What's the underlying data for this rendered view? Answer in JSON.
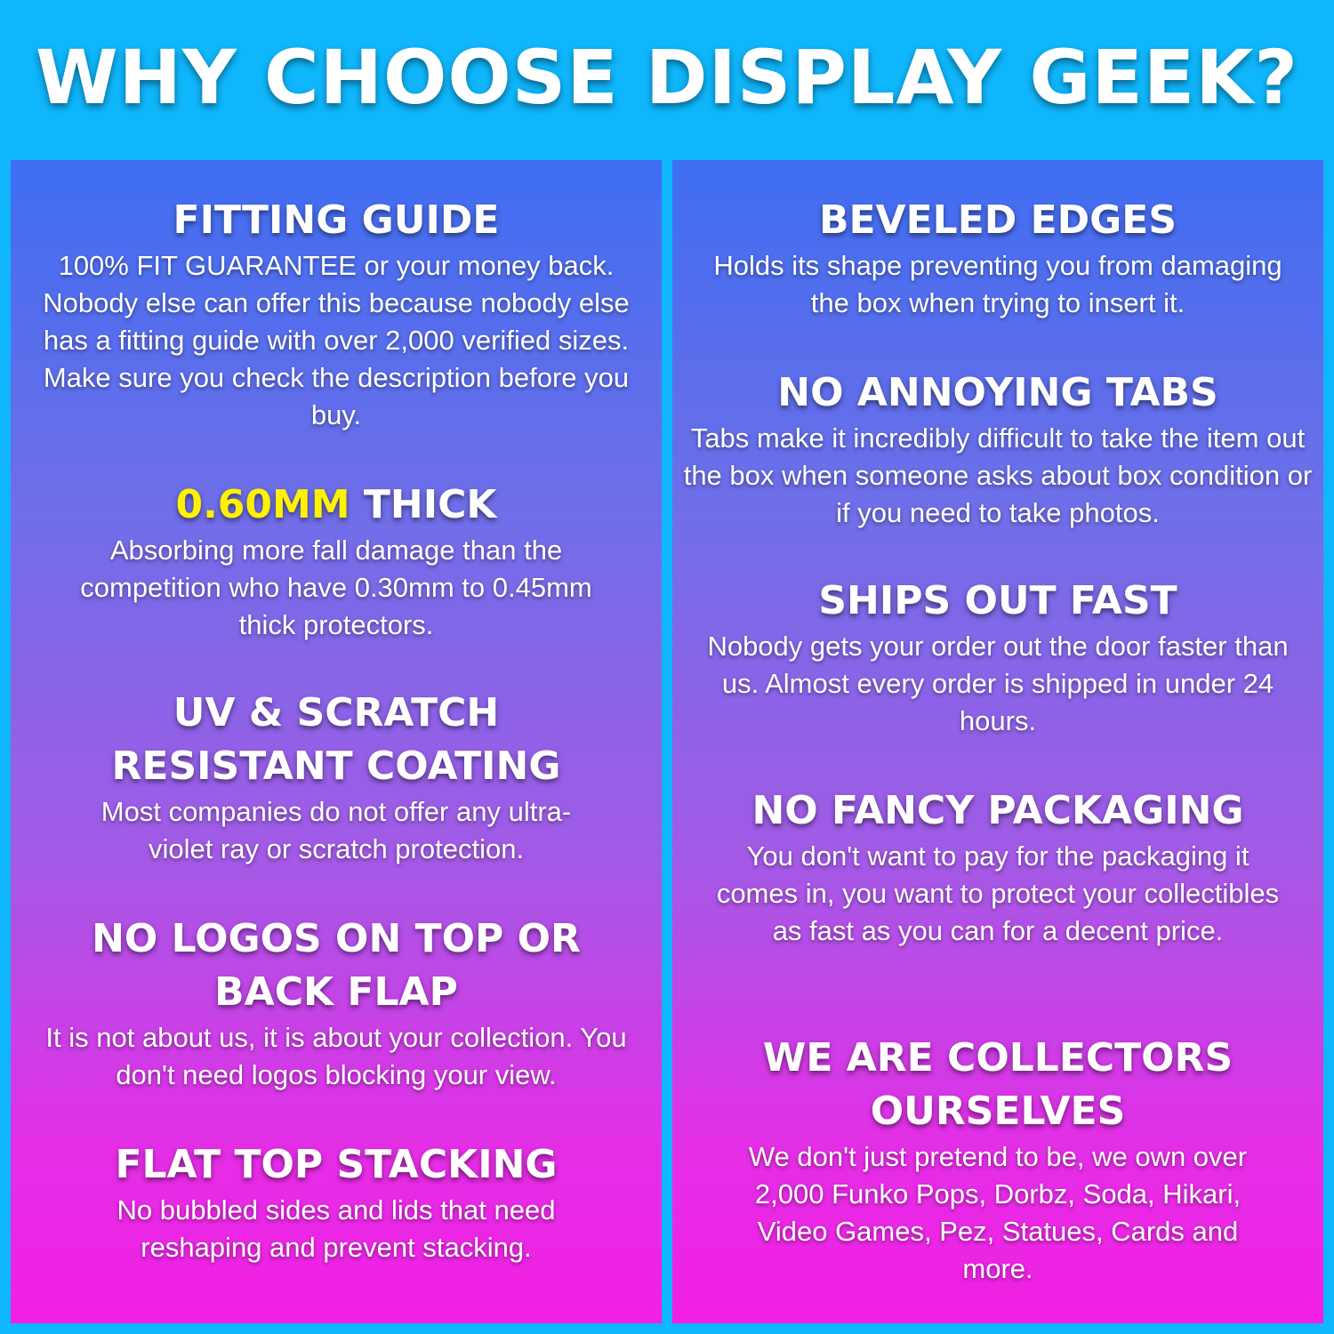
{
  "title": "WHY CHOOSE DISPLAY GEEK?",
  "colors": {
    "background": "#0fb6fb",
    "panel_top": "#3f6ef2",
    "panel_bottom": "#f21fe4",
    "highlight": "#fff200"
  },
  "left": [
    {
      "heading": "FITTING GUIDE",
      "body": "100% FIT GUARANTEE or your money back. Nobody else can offer this because nobody else has a fitting guide with over 2,000 verified sizes. Make sure you check the description before you buy."
    },
    {
      "heading_highlight": "0.60MM",
      "heading": "THICK",
      "body": "Absorbing more fall damage than the competition who have 0.30mm to 0.45mm thick protectors."
    },
    {
      "heading": "UV & SCRATCH RESISTANT COATING",
      "body": "Most companies do not offer any ultra-violet ray or scratch protection."
    },
    {
      "heading": "NO LOGOS ON TOP OR BACK FLAP",
      "body": "It is not about us, it is about your collection. You don't need logos blocking your view."
    },
    {
      "heading": "FLAT TOP STACKING",
      "body": "No bubbled sides and lids that need reshaping and prevent stacking."
    }
  ],
  "right": [
    {
      "heading": "BEVELED EDGES",
      "body": "Holds its shape preventing you from damaging the box when trying to insert it."
    },
    {
      "heading": "NO ANNOYING TABS",
      "body": "Tabs make it incredibly difficult to take the item out the box when someone asks about box condition or if you need to take photos."
    },
    {
      "heading": "SHIPS OUT FAST",
      "body": "Nobody gets your order out the door faster than us. Almost every order is shipped in under 24 hours."
    },
    {
      "heading": "NO FANCY PACKAGING",
      "body": "You don't want to pay for the packaging it comes in, you want to protect your collectibles as fast as you can for a decent price."
    },
    {
      "heading": "WE ARE COLLECTORS OURSELVES",
      "body": "We don't just pretend to be, we own over 2,000 Funko Pops, Dorbz, Soda, Hikari, Video Games, Pez, Statues, Cards and more."
    }
  ]
}
